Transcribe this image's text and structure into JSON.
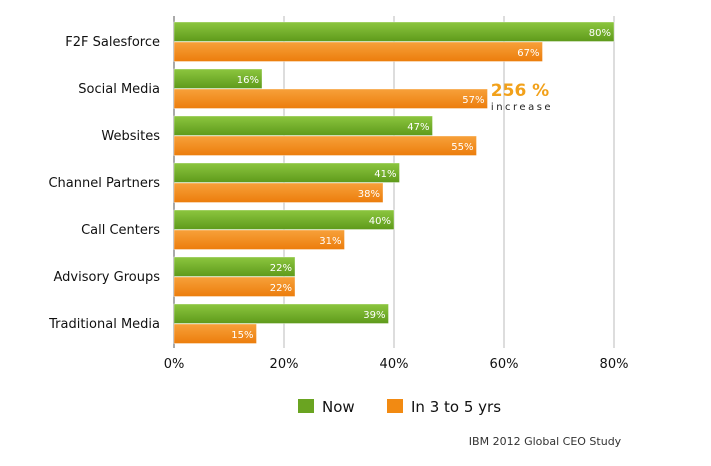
{
  "chart_data": {
    "type": "bar",
    "orientation": "horizontal",
    "categories": [
      "F2F Salesforce",
      "Social Media",
      "Websites",
      "Channel Partners",
      "Call Centers",
      "Advisory Groups",
      "Traditional Media"
    ],
    "series": [
      {
        "name": "Now",
        "values": [
          80,
          16,
          47,
          41,
          40,
          22,
          39
        ],
        "color": "#6aa421"
      },
      {
        "name": "In 3 to 5 yrs",
        "values": [
          67,
          57,
          55,
          38,
          31,
          22,
          15
        ],
        "color": "#f28a12"
      }
    ],
    "value_labels": {
      "Now": [
        "80%",
        "16%",
        "47%",
        "41%",
        "40%",
        "22%",
        "39%"
      ],
      "In 3 to 5 yrs": [
        "67%",
        "57%",
        "55%",
        "38%",
        "31%",
        "22%",
        "15%"
      ]
    },
    "xlim": [
      0,
      80
    ],
    "xticks": [
      0,
      20,
      40,
      60,
      80
    ],
    "xtick_labels": [
      "0%",
      "20%",
      "40%",
      "60%",
      "80%"
    ],
    "grid": true,
    "legend_position": "bottom"
  },
  "annotation": {
    "value": "256 %",
    "label": "increase",
    "color": "#f2a11a"
  },
  "source": "IBM 2012 Global CEO Study"
}
